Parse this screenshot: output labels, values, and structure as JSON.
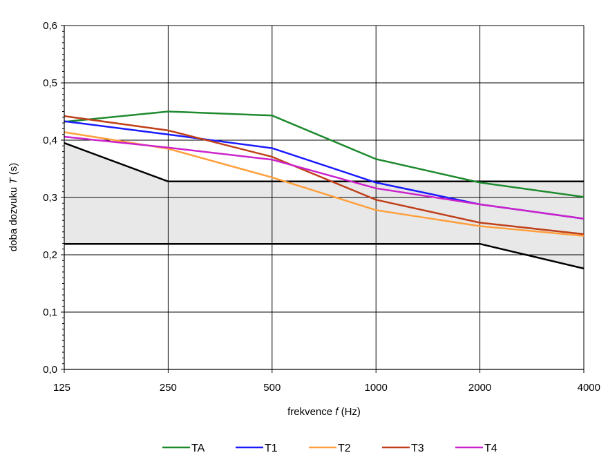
{
  "chart_data": {
    "type": "line",
    "categories": [
      "125",
      "250",
      "500",
      "1000",
      "2000",
      "4000"
    ],
    "ylabel_main": "doba dozvuku ",
    "ylabel_var": "T",
    "ylabel_unit": " (s)",
    "xlabel_main": "frekvence ",
    "xlabel_var": "f",
    "xlabel_unit": " (Hz)",
    "ylim": [
      0,
      0.6
    ],
    "yticks": [
      "0,0",
      "0,1",
      "0,2",
      "0,3",
      "0,4",
      "0,5",
      "0,6"
    ],
    "ytick_values": [
      0,
      0.1,
      0.2,
      0.3,
      0.4,
      0.5,
      0.6
    ],
    "grid": true,
    "tolerance_band": {
      "upper": [
        0.395,
        0.328,
        0.328,
        0.328,
        0.328,
        0.328
      ],
      "lower": [
        0.219,
        0.219,
        0.219,
        0.219,
        0.219,
        0.176
      ],
      "fill_color": "#e8e8e8",
      "line_color": "#000000"
    },
    "series": [
      {
        "name": "TA",
        "color": "#1e8a2e",
        "values": [
          0.432,
          0.45,
          0.443,
          0.367,
          0.326,
          0.301
        ]
      },
      {
        "name": "T1",
        "color": "#1a1aff",
        "values": [
          0.433,
          0.41,
          0.386,
          0.326,
          0.288,
          0.263
        ]
      },
      {
        "name": "T2",
        "color": "#ff9f3c",
        "values": [
          0.414,
          0.385,
          0.335,
          0.278,
          0.25,
          0.233
        ]
      },
      {
        "name": "T3",
        "color": "#c0401a",
        "values": [
          0.442,
          0.417,
          0.371,
          0.296,
          0.256,
          0.236
        ]
      },
      {
        "name": "T4",
        "color": "#cc22cc",
        "values": [
          0.406,
          0.387,
          0.366,
          0.316,
          0.288,
          0.263
        ]
      }
    ],
    "legend_position": "bottom"
  }
}
